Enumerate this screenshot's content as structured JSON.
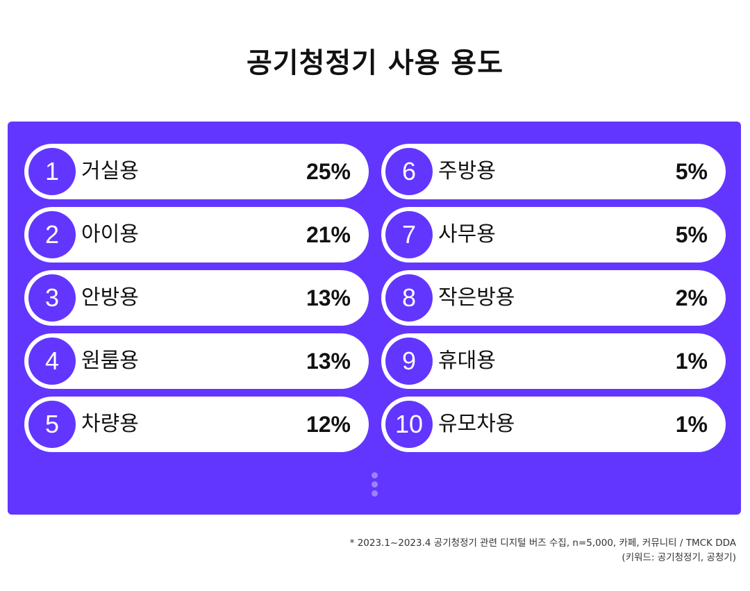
{
  "title": "공기청정기 사용 용도",
  "left_items": [
    {
      "rank": "1",
      "label": "거실용",
      "percent": "25%"
    },
    {
      "rank": "2",
      "label": "아이용",
      "percent": "21%"
    },
    {
      "rank": "3",
      "label": "안방용",
      "percent": "13%"
    },
    {
      "rank": "4",
      "label": "원룸용",
      "percent": "13%"
    },
    {
      "rank": "5",
      "label": "차량용",
      "percent": "12%"
    }
  ],
  "right_items": [
    {
      "rank": "6",
      "label": "주방용",
      "percent": "5%"
    },
    {
      "rank": "7",
      "label": "사무용",
      "percent": "5%"
    },
    {
      "rank": "8",
      "label": "작은방용",
      "percent": "2%"
    },
    {
      "rank": "9",
      "label": "휴대용",
      "percent": "1%"
    },
    {
      "rank": "10",
      "label": "유모차용",
      "percent": "1%"
    }
  ],
  "footnote": {
    "line1": "* 2023.1~2023.4 공기청정기 관련 디지털 버즈 수집, n=5,000, 카페, 커뮤니티 / TMCK DDA",
    "line2": "(키워드: 공기청정기, 공청기)"
  },
  "colors": {
    "accent": "#6236ff",
    "dots": "#9c83ff"
  },
  "icons": {
    "more": "vertical-ellipsis-icon"
  }
}
